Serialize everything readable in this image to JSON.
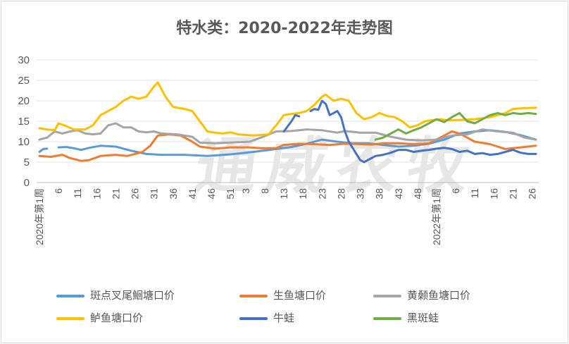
{
  "chart_data": {
    "type": "line",
    "title": "特水类：2020-2022年走势图",
    "ylim": [
      0,
      30
    ],
    "yticks": [
      0,
      5,
      10,
      15,
      20,
      25,
      30
    ],
    "xlabels": [
      {
        "idx": 0,
        "text": "2020年第1周"
      },
      {
        "idx": 5,
        "text": "6"
      },
      {
        "idx": 10,
        "text": "11"
      },
      {
        "idx": 15,
        "text": "16"
      },
      {
        "idx": 20,
        "text": "21"
      },
      {
        "idx": 25,
        "text": "26"
      },
      {
        "idx": 30,
        "text": "31"
      },
      {
        "idx": 35,
        "text": "36"
      },
      {
        "idx": 40,
        "text": "41"
      },
      {
        "idx": 45,
        "text": "46"
      },
      {
        "idx": 50,
        "text": "51"
      },
      {
        "idx": 54,
        "text": "3"
      },
      {
        "idx": 59,
        "text": "8"
      },
      {
        "idx": 64,
        "text": "13"
      },
      {
        "idx": 69,
        "text": "18"
      },
      {
        "idx": 74,
        "text": "23"
      },
      {
        "idx": 79,
        "text": "28"
      },
      {
        "idx": 84,
        "text": "33"
      },
      {
        "idx": 89,
        "text": "38"
      },
      {
        "idx": 94,
        "text": "43"
      },
      {
        "idx": 99,
        "text": "48"
      },
      {
        "idx": 104,
        "text": "2022年第1周"
      },
      {
        "idx": 109,
        "text": "6"
      },
      {
        "idx": 114,
        "text": "11"
      },
      {
        "idx": 119,
        "text": "16"
      },
      {
        "idx": 124,
        "text": "21"
      },
      {
        "idx": 129,
        "text": "26"
      }
    ],
    "n_points": 131,
    "series": [
      {
        "name": "斑点叉尾鮰塘口价",
        "color": "#5b9bd5",
        "points": [
          [
            0,
            7.5
          ],
          [
            1,
            8.2
          ],
          [
            2,
            8.3
          ],
          [
            4,
            null
          ],
          [
            5,
            8.6
          ],
          [
            7,
            8.7
          ],
          [
            9,
            8.4
          ],
          [
            11,
            8
          ],
          [
            13,
            8.5
          ],
          [
            16,
            9
          ],
          [
            20,
            8.8
          ],
          [
            24,
            7.8
          ],
          [
            28,
            7
          ],
          [
            32,
            6.8
          ],
          [
            38,
            6.8
          ],
          [
            44,
            6.5
          ],
          [
            50,
            6.9
          ],
          [
            56,
            7.5
          ],
          [
            62,
            8.2
          ],
          [
            66,
            8.7
          ],
          [
            70,
            9.5
          ],
          [
            74,
            10.5
          ],
          [
            78,
            10
          ],
          [
            82,
            9.6
          ],
          [
            86,
            9.6
          ],
          [
            90,
            9.2
          ],
          [
            94,
            8.8
          ],
          [
            98,
            9
          ],
          [
            102,
            9.5
          ],
          [
            106,
            10.5
          ],
          [
            110,
            12
          ],
          [
            114,
            12.5
          ],
          [
            118,
            12.8
          ],
          [
            122,
            12.4
          ],
          [
            126,
            11.6
          ],
          [
            130,
            10.5
          ]
        ]
      },
      {
        "name": "生鱼塘口价",
        "color": "#ed7d31",
        "points": [
          [
            0,
            6.5
          ],
          [
            3,
            6.3
          ],
          [
            6,
            6.8
          ],
          [
            8,
            6
          ],
          [
            11,
            5.3
          ],
          [
            13,
            5.5
          ],
          [
            16,
            6.5
          ],
          [
            20,
            6.8
          ],
          [
            23,
            6.5
          ],
          [
            27,
            7.5
          ],
          [
            29,
            9
          ],
          [
            31,
            11.5
          ],
          [
            34,
            11.8
          ],
          [
            37,
            11.5
          ],
          [
            40,
            10
          ],
          [
            42,
            8.8
          ],
          [
            46,
            8.3
          ],
          [
            50,
            8.6
          ],
          [
            55,
            8.6
          ],
          [
            58,
            8.4
          ],
          [
            62,
            8.4
          ],
          [
            64,
            9.2
          ],
          [
            68,
            9.5
          ],
          [
            72,
            9.4
          ],
          [
            76,
            9.2
          ],
          [
            80,
            9.5
          ],
          [
            84,
            9.4
          ],
          [
            87,
            9.3
          ],
          [
            90,
            9.6
          ],
          [
            94,
            9.6
          ],
          [
            98,
            9.4
          ],
          [
            102,
            9.6
          ],
          [
            106,
            11.5
          ],
          [
            108,
            12.5
          ],
          [
            110,
            12
          ],
          [
            112,
            11
          ],
          [
            114,
            10
          ],
          [
            118,
            9.4
          ],
          [
            122,
            8.2
          ],
          [
            126,
            8.6
          ],
          [
            130,
            9
          ]
        ]
      },
      {
        "name": "黄颡鱼塘口价",
        "color": "#a5a5a5",
        "points": [
          [
            0,
            10.5
          ],
          [
            2,
            11
          ],
          [
            4,
            12.5
          ],
          [
            6,
            12
          ],
          [
            8,
            12.5
          ],
          [
            10,
            12.8
          ],
          [
            12,
            12
          ],
          [
            14,
            11.8
          ],
          [
            16,
            12
          ],
          [
            18,
            14
          ],
          [
            20,
            14.5
          ],
          [
            22,
            13.5
          ],
          [
            24,
            13.5
          ],
          [
            26,
            12.5
          ],
          [
            28,
            12.3
          ],
          [
            30,
            12.5
          ],
          [
            32,
            12
          ],
          [
            36,
            11.8
          ],
          [
            40,
            11.2
          ],
          [
            42,
            9.8
          ],
          [
            46,
            9.6
          ],
          [
            50,
            9.8
          ],
          [
            55,
            10
          ],
          [
            58,
            11
          ],
          [
            62,
            12.5
          ],
          [
            66,
            12.6
          ],
          [
            70,
            13
          ],
          [
            74,
            12.8
          ],
          [
            78,
            12.2
          ],
          [
            80,
            12.6
          ],
          [
            84,
            12.2
          ],
          [
            88,
            12.2
          ],
          [
            92,
            11.2
          ],
          [
            96,
            10.5
          ],
          [
            100,
            10.3
          ],
          [
            104,
            10.5
          ],
          [
            108,
            11.5
          ],
          [
            112,
            11.8
          ],
          [
            116,
            13
          ],
          [
            120,
            12.5
          ],
          [
            124,
            12.2
          ],
          [
            127,
            11
          ],
          [
            130,
            10.5
          ]
        ]
      },
      {
        "name": "鲈鱼塘口价",
        "color": "#ffc000",
        "points": [
          [
            0,
            13.3
          ],
          [
            2,
            13
          ],
          [
            4,
            12.8
          ],
          [
            5,
            14.5
          ],
          [
            7,
            13.8
          ],
          [
            9,
            13
          ],
          [
            12,
            13
          ],
          [
            14,
            14
          ],
          [
            16,
            16.5
          ],
          [
            18,
            17.5
          ],
          [
            20,
            18.5
          ],
          [
            22,
            20
          ],
          [
            24,
            21
          ],
          [
            26,
            20.5
          ],
          [
            28,
            21
          ],
          [
            30,
            23.5
          ],
          [
            31,
            24.5
          ],
          [
            33,
            21
          ],
          [
            35,
            18.5
          ],
          [
            38,
            18
          ],
          [
            40,
            17.5
          ],
          [
            42,
            15
          ],
          [
            44,
            12.5
          ],
          [
            46,
            12.2
          ],
          [
            48,
            12
          ],
          [
            50,
            12.3
          ],
          [
            52,
            11.8
          ],
          [
            56,
            11.5
          ],
          [
            60,
            11.8
          ],
          [
            62,
            14
          ],
          [
            64,
            16.5
          ],
          [
            66,
            16.8
          ],
          [
            68,
            17
          ],
          [
            70,
            17.5
          ],
          [
            72,
            19
          ],
          [
            74,
            21
          ],
          [
            75,
            21.5
          ],
          [
            77,
            20
          ],
          [
            79,
            20.5
          ],
          [
            81,
            20
          ],
          [
            83,
            17
          ],
          [
            85,
            15.5
          ],
          [
            87,
            16
          ],
          [
            89,
            17
          ],
          [
            91,
            16.3
          ],
          [
            93,
            16
          ],
          [
            95,
            15
          ],
          [
            97,
            13.5
          ],
          [
            99,
            14
          ],
          [
            101,
            15
          ],
          [
            103,
            15.3
          ],
          [
            105,
            15.5
          ],
          [
            107,
            15.2
          ],
          [
            110,
            15.3
          ],
          [
            114,
            15.5
          ],
          [
            118,
            16
          ],
          [
            122,
            17
          ],
          [
            124,
            18
          ],
          [
            127,
            18.2
          ],
          [
            130,
            18.3
          ]
        ]
      },
      {
        "name": "牛蛙",
        "color": "#4472c4",
        "points": [
          [
            63,
            null
          ],
          [
            64,
            12.5
          ],
          [
            66,
            15
          ],
          [
            67,
            16.5
          ],
          [
            68,
            16.2
          ],
          [
            69,
            null
          ],
          [
            70,
            null
          ],
          [
            71,
            17.5
          ],
          [
            72,
            18
          ],
          [
            73,
            17.8
          ],
          [
            74,
            20
          ],
          [
            75,
            19.2
          ],
          [
            76,
            16.5
          ],
          [
            77,
            17
          ],
          [
            78,
            17.5
          ],
          [
            79,
            16
          ],
          [
            80,
            12.5
          ],
          [
            81,
            10
          ],
          [
            82,
            8.5
          ],
          [
            83,
            7
          ],
          [
            84,
            5.5
          ],
          [
            85,
            5
          ],
          [
            86,
            5.5
          ],
          [
            87,
            6
          ],
          [
            88,
            6.5
          ],
          [
            90,
            6.8
          ],
          [
            92,
            7.3
          ],
          [
            94,
            8
          ],
          [
            96,
            8
          ],
          [
            98,
            7.5
          ],
          [
            100,
            7.8
          ],
          [
            102,
            8
          ],
          [
            104,
            8.3
          ],
          [
            106,
            8.5
          ],
          [
            108,
            8.2
          ],
          [
            110,
            7.5
          ],
          [
            112,
            7.8
          ],
          [
            114,
            7
          ],
          [
            116,
            7.2
          ],
          [
            118,
            6.8
          ],
          [
            120,
            7
          ],
          [
            122,
            7.5
          ],
          [
            124,
            8
          ],
          [
            126,
            7.3
          ],
          [
            128,
            7
          ],
          [
            130,
            7
          ]
        ]
      },
      {
        "name": "黑斑蛙",
        "color": "#70ad47",
        "points": [
          [
            88,
            10.5
          ],
          [
            90,
            11
          ],
          [
            92,
            12
          ],
          [
            94,
            13
          ],
          [
            96,
            12
          ],
          [
            98,
            12.8
          ],
          [
            100,
            13.5
          ],
          [
            102,
            14.5
          ],
          [
            104,
            15.5
          ],
          [
            106,
            14.8
          ],
          [
            108,
            16
          ],
          [
            110,
            17
          ],
          [
            112,
            15
          ],
          [
            114,
            14.5
          ],
          [
            116,
            15.5
          ],
          [
            118,
            16.5
          ],
          [
            120,
            17
          ],
          [
            122,
            16.5
          ],
          [
            124,
            17
          ],
          [
            126,
            16.8
          ],
          [
            128,
            17
          ],
          [
            130,
            16.8
          ]
        ]
      }
    ]
  },
  "legend": [
    {
      "label": "斑点叉尾鮰塘口价",
      "color": "#5b9bd5"
    },
    {
      "label": "生鱼塘口价",
      "color": "#ed7d31"
    },
    {
      "label": "黄颡鱼塘口价",
      "color": "#a5a5a5"
    },
    {
      "label": "鲈鱼塘口价",
      "color": "#ffc000"
    },
    {
      "label": "牛蛙",
      "color": "#4472c4"
    },
    {
      "label": "黑斑蛙",
      "color": "#70ad47"
    }
  ],
  "watermark": "通威农牧"
}
